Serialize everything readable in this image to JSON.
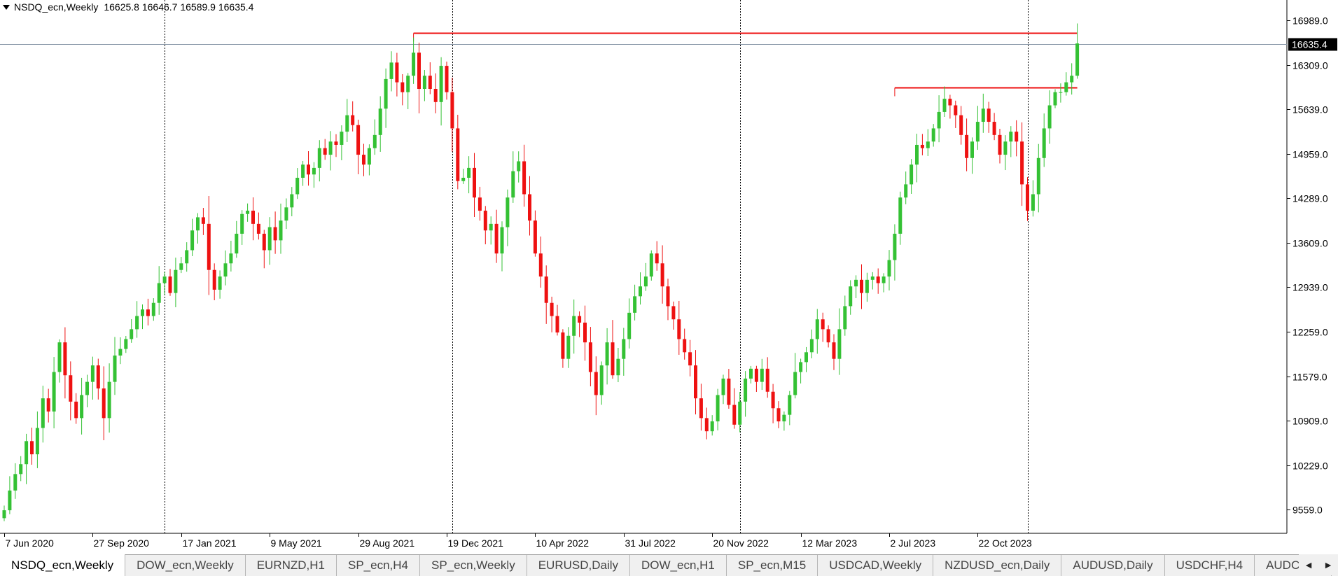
{
  "header": {
    "symbol": "NSDQ_ecn,Weekly",
    "ohlc": "16625.8 16646.7 16589.9 16635.4"
  },
  "colors": {
    "up": "#34c134",
    "down": "#ee1111",
    "level_line": "#ee1111",
    "price_line": "#8c9aaa",
    "grid": "#000000",
    "price_box": "#000000"
  },
  "tabs": [
    "NSDQ_ecn,Weekly",
    "DOW_ecn,Weekly",
    "EURNZD,H1",
    "SP_ecn,H4",
    "SP_ecn,Weekly",
    "EURUSD,Daily",
    "DOW_ecn,H1",
    "SP_ecn,M15",
    "USDCAD,Weekly",
    "NZDUSD_ecn,Daily",
    "AUDUSD,Daily",
    "USDCHF,H4",
    "AUDCAD,"
  ],
  "active_tab": 0,
  "scroll_icons": [
    "scroll-left-icon",
    "scroll-right-icon"
  ],
  "chart_data": {
    "type": "candlestick",
    "ylim": [
      9200,
      17300
    ],
    "y_ticks": [
      16989.0,
      16309.0,
      15639.0,
      14959.0,
      14289.0,
      13609.0,
      12939.0,
      12259.0,
      11579.0,
      10909.0,
      10229.0,
      9559.0
    ],
    "y_tick_labels": [
      "16989.0",
      "16309.0",
      "15639.0",
      "14959.0",
      "14289.0",
      "13609.0",
      "12939.0",
      "12259.0",
      "11579.0",
      "10909.0",
      "10229.0",
      "9559.0"
    ],
    "x_labels": [
      {
        "label": "7 Jun 2020",
        "index": 0
      },
      {
        "label": "27 Sep 2020",
        "index": 16
      },
      {
        "label": "17 Jan 2021",
        "index": 32
      },
      {
        "label": "9 May 2021",
        "index": 48
      },
      {
        "label": "29 Aug 2021",
        "index": 64
      },
      {
        "label": "19 Dec 2021",
        "index": 80
      },
      {
        "label": "10 Apr 2022",
        "index": 96
      },
      {
        "label": "31 Jul 2022",
        "index": 112
      },
      {
        "label": "20 Nov 2022",
        "index": 128
      },
      {
        "label": "12 Mar 2023",
        "index": 144
      },
      {
        "label": "2 Jul 2023",
        "index": 160
      },
      {
        "label": "22 Oct 2023",
        "index": 176
      }
    ],
    "period_separators": [
      29,
      81,
      133,
      185
    ],
    "current_price": 16635.4,
    "current_price_label": "16635.4",
    "levels": [
      {
        "price": 16800,
        "from_index": 74,
        "to_index": 194
      },
      {
        "price": 15970,
        "from_index": 161,
        "to_index": 194
      }
    ],
    "closes": [
      9550,
      9850,
      10100,
      10250,
      10600,
      10400,
      10800,
      11250,
      11050,
      11650,
      12100,
      11600,
      11200,
      10950,
      11300,
      11500,
      11750,
      11400,
      10950,
      11500,
      11900,
      12000,
      12150,
      12300,
      12500,
      12600,
      12500,
      12700,
      13000,
      13100,
      12850,
      13200,
      13300,
      13500,
      13800,
      14000,
      13900,
      13200,
      12900,
      13100,
      13300,
      13450,
      13750,
      14050,
      14100,
      13900,
      13750,
      13500,
      13850,
      13650,
      13950,
      14150,
      14350,
      14600,
      14800,
      14650,
      14750,
      15050,
      14950,
      15150,
      15100,
      15300,
      15550,
      15400,
      14950,
      14800,
      15050,
      15250,
      15650,
      16100,
      16350,
      16050,
      15900,
      16150,
      16500,
      15950,
      16150,
      15950,
      15750,
      16300,
      15900,
      15350,
      14550,
      14600,
      14750,
      14300,
      14100,
      13800,
      13900,
      13450,
      13850,
      14300,
      14700,
      14850,
      14350,
      13950,
      13450,
      13100,
      12700,
      12500,
      12250,
      11850,
      12200,
      12500,
      12400,
      12100,
      11650,
      11300,
      11750,
      12100,
      11600,
      11850,
      12150,
      12550,
      12800,
      12950,
      13100,
      13450,
      13300,
      12950,
      12650,
      12450,
      12150,
      11950,
      11750,
      11250,
      10950,
      10750,
      10900,
      11300,
      11550,
      11150,
      10850,
      11200,
      11550,
      11700,
      11500,
      11700,
      11350,
      11100,
      10900,
      11000,
      11300,
      11650,
      11800,
      11950,
      12150,
      12450,
      12300,
      12100,
      11850,
      12300,
      12650,
      12950,
      13050,
      12850,
      13050,
      13100,
      13000,
      13100,
      13350,
      13750,
      14300,
      14500,
      14800,
      15100,
      15050,
      15150,
      15350,
      15600,
      15800,
      15700,
      15550,
      15250,
      14900,
      15150,
      15450,
      15650,
      15450,
      15250,
      14950,
      15150,
      15300,
      15150,
      14500,
      14100,
      14350,
      14900,
      15350,
      15700,
      15900,
      15900,
      16050,
      16150,
      16640
    ]
  }
}
